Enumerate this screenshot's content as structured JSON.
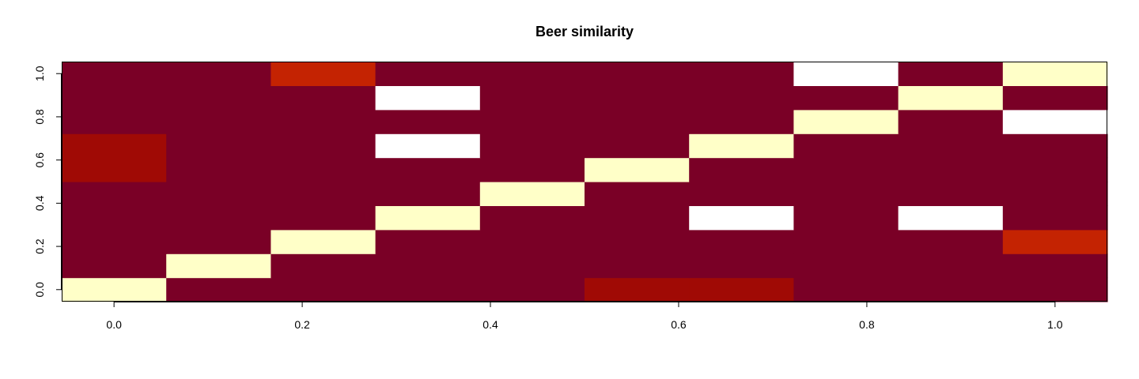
{
  "chart_data": {
    "type": "heatmap",
    "title": "Beer similarity",
    "xlabel": "",
    "ylabel": "",
    "xlim": [
      -0.0556,
      1.0556
    ],
    "ylim": [
      -0.0556,
      1.0556
    ],
    "x_ticks": [
      "0.0",
      "0.2",
      "0.4",
      "0.6",
      "0.8",
      "1.0"
    ],
    "y_ticks": [
      "0.0",
      "0.2",
      "0.4",
      "0.6",
      "0.8",
      "1.0"
    ],
    "n_cols": 10,
    "n_rows": 10,
    "legend": "none",
    "colors": {
      "low": "#7a0026",
      "mid_low": "#a00a05",
      "mid": "#c42302",
      "high": "#ffffc8",
      "na": "#ffffff"
    },
    "rows_bottom_to_top": [
      [
        "high",
        "low",
        "low",
        "low",
        "low",
        "mid_low",
        "mid_low",
        "low",
        "low",
        "low"
      ],
      [
        "low",
        "high",
        "low",
        "low",
        "low",
        "low",
        "low",
        "low",
        "low",
        "low"
      ],
      [
        "low",
        "low",
        "high",
        "low",
        "low",
        "low",
        "low",
        "low",
        "low",
        "mid"
      ],
      [
        "low",
        "low",
        "low",
        "high",
        "low",
        "low",
        "na",
        "low",
        "na",
        "low"
      ],
      [
        "low",
        "low",
        "low",
        "low",
        "high",
        "low",
        "low",
        "low",
        "low",
        "low"
      ],
      [
        "mid_low",
        "low",
        "low",
        "low",
        "low",
        "high",
        "low",
        "low",
        "low",
        "low"
      ],
      [
        "mid_low",
        "low",
        "low",
        "na",
        "low",
        "low",
        "high",
        "low",
        "low",
        "low"
      ],
      [
        "low",
        "low",
        "low",
        "low",
        "low",
        "low",
        "low",
        "high",
        "low",
        "na"
      ],
      [
        "low",
        "low",
        "low",
        "na",
        "low",
        "low",
        "low",
        "low",
        "high",
        "low"
      ],
      [
        "low",
        "low",
        "mid",
        "low",
        "low",
        "low",
        "low",
        "na",
        "low",
        "high"
      ]
    ]
  }
}
